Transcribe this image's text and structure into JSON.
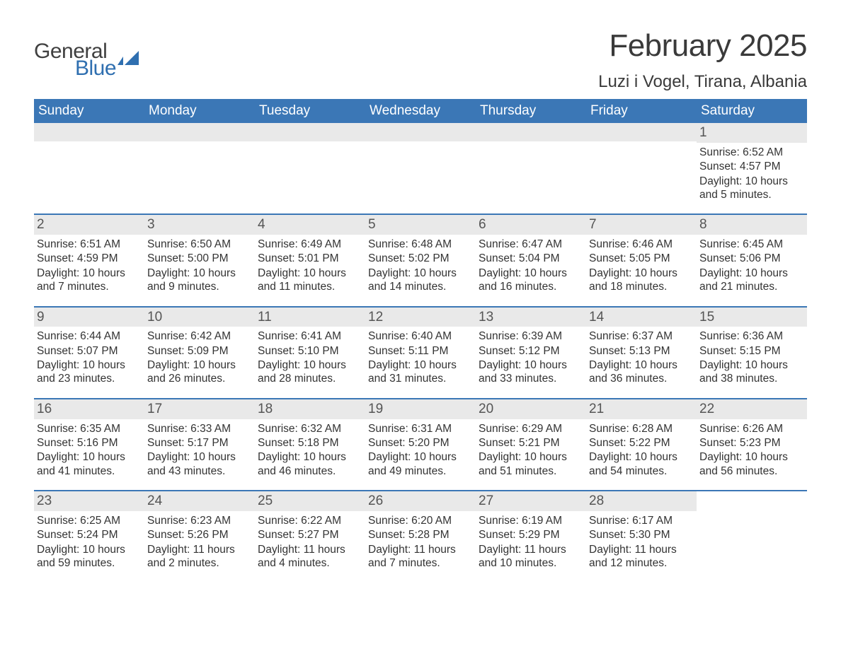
{
  "logo": {
    "line1": "General",
    "line2": "Blue",
    "icon_color": "#2f6fb0",
    "text_dark": "#404040"
  },
  "title": "February 2025",
  "location": "Luzi i Vogel, Tirana, Albania",
  "colors": {
    "header_bg": "#3b77b6",
    "header_text": "#ffffff",
    "daynum_bg": "#e9e9e9",
    "daynum_text": "#555555",
    "body_text": "#333333",
    "week_border": "#3b77b6"
  },
  "weekday_labels": [
    "Sunday",
    "Monday",
    "Tuesday",
    "Wednesday",
    "Thursday",
    "Friday",
    "Saturday"
  ],
  "labels": {
    "sunrise": "Sunrise:",
    "sunset": "Sunset:",
    "daylight": "Daylight:"
  },
  "weeks": [
    [
      {
        "day": "",
        "empty": true
      },
      {
        "day": "",
        "empty": true
      },
      {
        "day": "",
        "empty": true
      },
      {
        "day": "",
        "empty": true
      },
      {
        "day": "",
        "empty": true
      },
      {
        "day": "",
        "empty": true
      },
      {
        "day": "1",
        "sunrise": "6:52 AM",
        "sunset": "4:57 PM",
        "daylight": "10 hours and 5 minutes."
      }
    ],
    [
      {
        "day": "2",
        "sunrise": "6:51 AM",
        "sunset": "4:59 PM",
        "daylight": "10 hours and 7 minutes."
      },
      {
        "day": "3",
        "sunrise": "6:50 AM",
        "sunset": "5:00 PM",
        "daylight": "10 hours and 9 minutes."
      },
      {
        "day": "4",
        "sunrise": "6:49 AM",
        "sunset": "5:01 PM",
        "daylight": "10 hours and 11 minutes."
      },
      {
        "day": "5",
        "sunrise": "6:48 AM",
        "sunset": "5:02 PM",
        "daylight": "10 hours and 14 minutes."
      },
      {
        "day": "6",
        "sunrise": "6:47 AM",
        "sunset": "5:04 PM",
        "daylight": "10 hours and 16 minutes."
      },
      {
        "day": "7",
        "sunrise": "6:46 AM",
        "sunset": "5:05 PM",
        "daylight": "10 hours and 18 minutes."
      },
      {
        "day": "8",
        "sunrise": "6:45 AM",
        "sunset": "5:06 PM",
        "daylight": "10 hours and 21 minutes."
      }
    ],
    [
      {
        "day": "9",
        "sunrise": "6:44 AM",
        "sunset": "5:07 PM",
        "daylight": "10 hours and 23 minutes."
      },
      {
        "day": "10",
        "sunrise": "6:42 AM",
        "sunset": "5:09 PM",
        "daylight": "10 hours and 26 minutes."
      },
      {
        "day": "11",
        "sunrise": "6:41 AM",
        "sunset": "5:10 PM",
        "daylight": "10 hours and 28 minutes."
      },
      {
        "day": "12",
        "sunrise": "6:40 AM",
        "sunset": "5:11 PM",
        "daylight": "10 hours and 31 minutes."
      },
      {
        "day": "13",
        "sunrise": "6:39 AM",
        "sunset": "5:12 PM",
        "daylight": "10 hours and 33 minutes."
      },
      {
        "day": "14",
        "sunrise": "6:37 AM",
        "sunset": "5:13 PM",
        "daylight": "10 hours and 36 minutes."
      },
      {
        "day": "15",
        "sunrise": "6:36 AM",
        "sunset": "5:15 PM",
        "daylight": "10 hours and 38 minutes."
      }
    ],
    [
      {
        "day": "16",
        "sunrise": "6:35 AM",
        "sunset": "5:16 PM",
        "daylight": "10 hours and 41 minutes."
      },
      {
        "day": "17",
        "sunrise": "6:33 AM",
        "sunset": "5:17 PM",
        "daylight": "10 hours and 43 minutes."
      },
      {
        "day": "18",
        "sunrise": "6:32 AM",
        "sunset": "5:18 PM",
        "daylight": "10 hours and 46 minutes."
      },
      {
        "day": "19",
        "sunrise": "6:31 AM",
        "sunset": "5:20 PM",
        "daylight": "10 hours and 49 minutes."
      },
      {
        "day": "20",
        "sunrise": "6:29 AM",
        "sunset": "5:21 PM",
        "daylight": "10 hours and 51 minutes."
      },
      {
        "day": "21",
        "sunrise": "6:28 AM",
        "sunset": "5:22 PM",
        "daylight": "10 hours and 54 minutes."
      },
      {
        "day": "22",
        "sunrise": "6:26 AM",
        "sunset": "5:23 PM",
        "daylight": "10 hours and 56 minutes."
      }
    ],
    [
      {
        "day": "23",
        "sunrise": "6:25 AM",
        "sunset": "5:24 PM",
        "daylight": "10 hours and 59 minutes."
      },
      {
        "day": "24",
        "sunrise": "6:23 AM",
        "sunset": "5:26 PM",
        "daylight": "11 hours and 2 minutes."
      },
      {
        "day": "25",
        "sunrise": "6:22 AM",
        "sunset": "5:27 PM",
        "daylight": "11 hours and 4 minutes."
      },
      {
        "day": "26",
        "sunrise": "6:20 AM",
        "sunset": "5:28 PM",
        "daylight": "11 hours and 7 minutes."
      },
      {
        "day": "27",
        "sunrise": "6:19 AM",
        "sunset": "5:29 PM",
        "daylight": "11 hours and 10 minutes."
      },
      {
        "day": "28",
        "sunrise": "6:17 AM",
        "sunset": "5:30 PM",
        "daylight": "11 hours and 12 minutes."
      },
      {
        "day": "",
        "empty": true,
        "no_bar": true
      }
    ]
  ]
}
